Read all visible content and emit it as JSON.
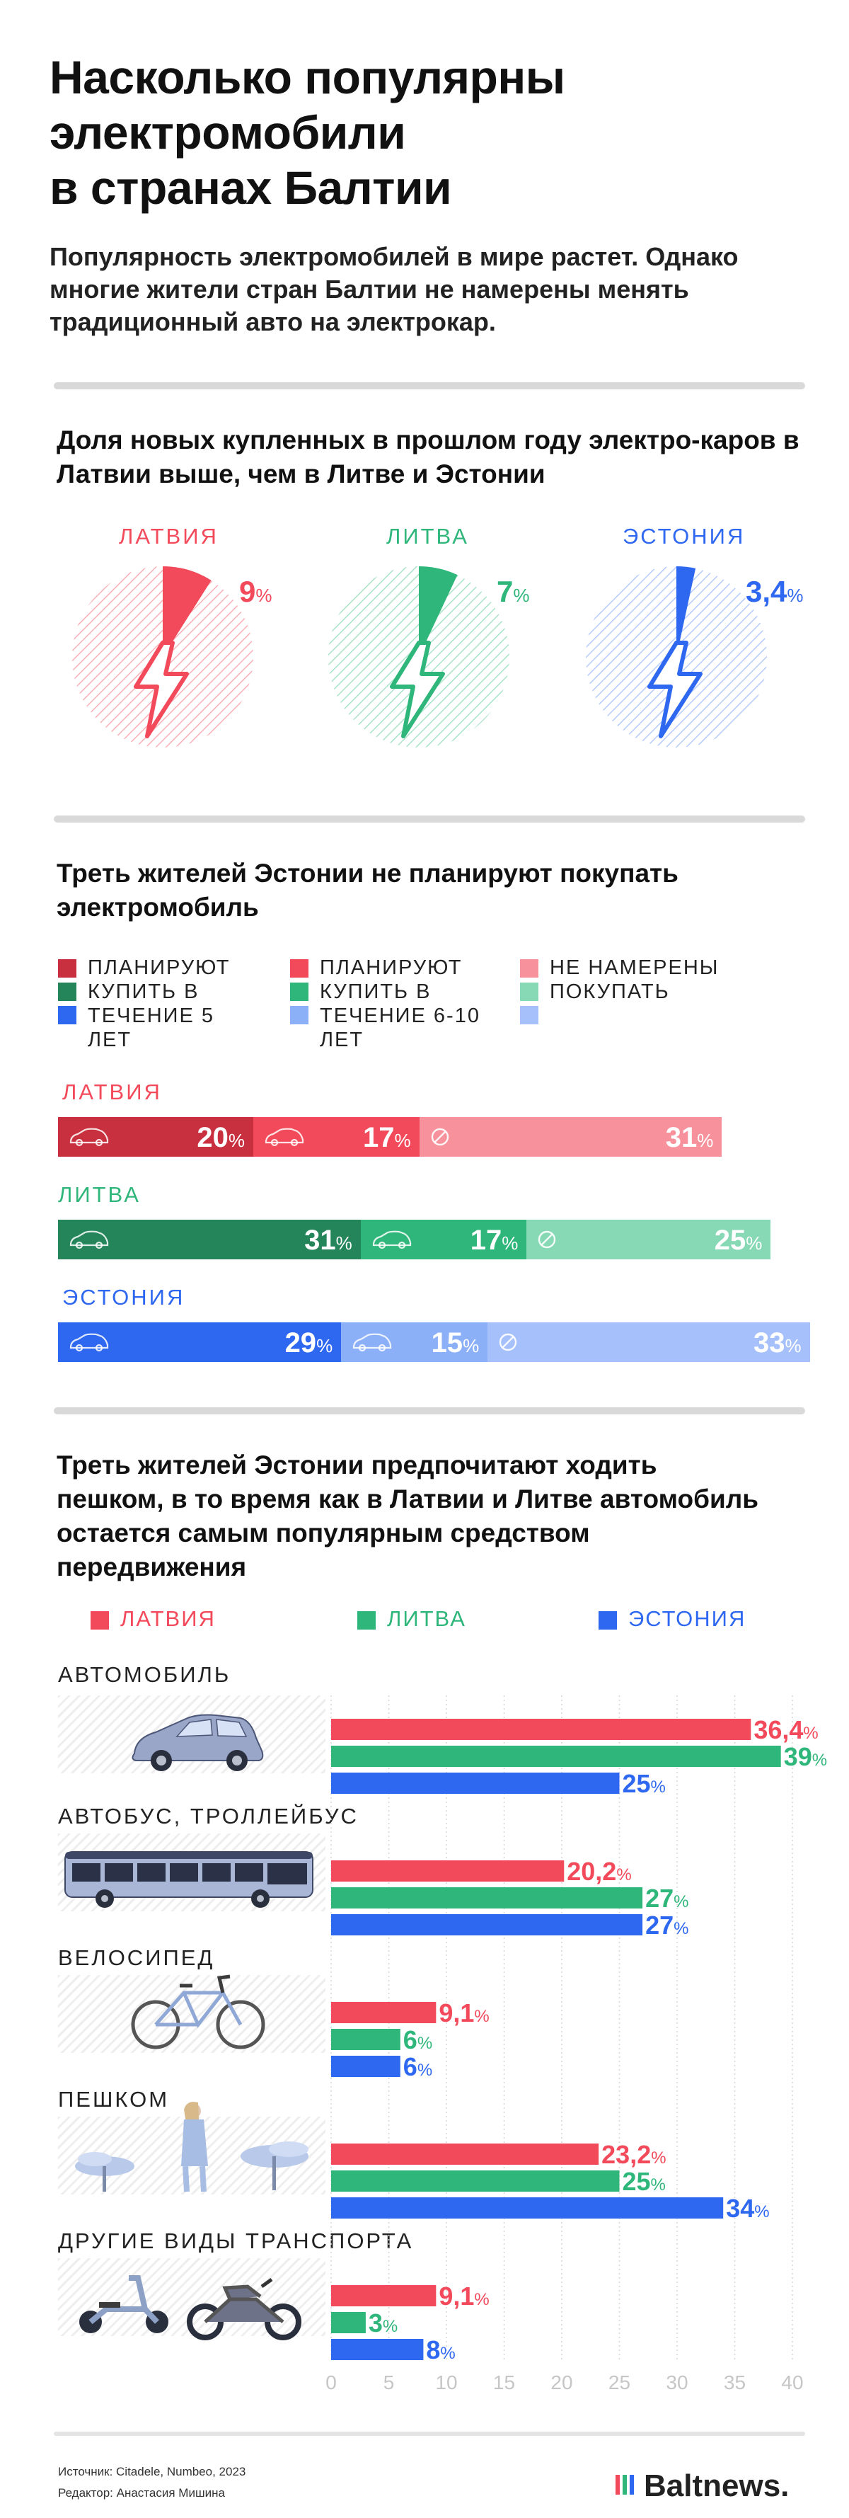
{
  "title_lines": [
    "Насколько популярны",
    "электромобили",
    "в странах Балтии"
  ],
  "lead": "Популярность электромобилей в мире растет. Однако многие жители стран Балтии не намерены менять традиционный авто на электрокар.",
  "colors": {
    "latvia": "#f24a5b",
    "latvia_dark": "#c8303f",
    "latvia_light": "#f7929c",
    "lithuania": "#2fb67a",
    "lithuania_dark": "#25855a",
    "lithuania_light": "#86d9b4",
    "estonia": "#2f68f0",
    "estonia_light": "#a6c0fb"
  },
  "section1": {
    "title": "Доля новых купленных в прошлом году электро-каров в Латвии выше, чем в Литве и Эстонии",
    "countries": [
      {
        "name": "ЛАТВИЯ",
        "value": "9",
        "share": 9,
        "color": "latvia"
      },
      {
        "name": "ЛИТВА",
        "value": "7",
        "share": 7,
        "color": "lithuania"
      },
      {
        "name": "ЭСТОНИЯ",
        "value": "3,4",
        "share": 3.4,
        "color": "estonia"
      }
    ],
    "pct": "%"
  },
  "section2": {
    "title": "Треть жителей Эстонии не планируют покупать электромобиль",
    "legend": [
      {
        "text": "ПЛАНИРУЮТ КУПИТЬ В ТЕЧЕНИЕ 5 ЛЕТ"
      },
      {
        "text": "ПЛАНИРУЮТ КУПИТЬ В ТЕЧЕНИЕ 6-10 ЛЕТ"
      },
      {
        "text": "НЕ НАМЕРЕНЫ ПОКУПАТЬ"
      }
    ],
    "pct": "%"
  },
  "section3": {
    "title": "Треть жителей Эстонии предпочитают ходить пешком, в то время как в Латвии и Литве автомобиль остается самым популярным средством передвижения",
    "legend": [
      "ЛАТВИЯ",
      "ЛИТВА",
      "ЭСТОНИЯ"
    ],
    "pct": "%"
  },
  "chart_data": [
    {
      "type": "pie",
      "title": "Доля новых купленных в прошлом году электро-каров в Латвии выше, чем в Литве и Эстонии",
      "categories": [
        "ЛАТВИЯ",
        "ЛИТВА",
        "ЭСТОНИЯ"
      ],
      "values": [
        9,
        7,
        3.4
      ],
      "unit": "%"
    },
    {
      "type": "bar",
      "title": "Треть жителей Эстонии не планируют покупать электромобиль",
      "stacked": true,
      "orientation": "horizontal",
      "categories": [
        "ЛАТВИЯ",
        "ЛИТВА",
        "ЭСТОНИЯ"
      ],
      "series": [
        {
          "name": "ПЛАНИРУЮТ КУПИТЬ В ТЕЧЕНИЕ 5 ЛЕТ",
          "values": [
            20,
            31,
            29
          ]
        },
        {
          "name": "ПЛАНИРУЮТ КУПИТЬ В ТЕЧЕНИЕ 6-10 ЛЕТ",
          "values": [
            17,
            17,
            15
          ]
        },
        {
          "name": "НЕ НАМЕРЕНЫ ПОКУПАТЬ",
          "values": [
            31,
            25,
            33
          ]
        }
      ],
      "unit": "%"
    },
    {
      "type": "bar",
      "title": "Треть жителей Эстонии предпочитают ходить пешком, в то время как в Латвии и Литве автомобиль остается самым популярным средством передвижения",
      "orientation": "horizontal",
      "categories": [
        "АВТОМОБИЛЬ",
        "АВТОБУС, ТРОЛЛЕЙБУС",
        "ВЕЛОСИПЕД",
        "ПЕШКОМ",
        "ДРУГИЕ ВИДЫ ТРАНСПОРТА"
      ],
      "series": [
        {
          "name": "ЛАТВИЯ",
          "values": [
            36.4,
            20.2,
            9.1,
            23.2,
            9.1
          ],
          "labels": [
            "36,4",
            "20,2",
            "9,1",
            "23,2",
            "9,1"
          ]
        },
        {
          "name": "ЛИТВА",
          "values": [
            39,
            27,
            6,
            25,
            3
          ],
          "labels": [
            "39",
            "27",
            "6",
            "25",
            "3"
          ]
        },
        {
          "name": "ЭСТОНИЯ",
          "values": [
            25,
            27,
            6,
            34,
            8
          ],
          "labels": [
            "25",
            "27",
            "6",
            "34",
            "8"
          ]
        }
      ],
      "xlim": [
        0,
        40
      ],
      "xticks": [
        "0",
        "5",
        "10",
        "15",
        "20",
        "25",
        "30",
        "35",
        "40"
      ],
      "unit": "%"
    }
  ],
  "footer": {
    "source": "Источник: Citadele, Numbeo, 2023",
    "editor": "Редактор: Анастасия Мишина",
    "logo": "Baltnews."
  }
}
